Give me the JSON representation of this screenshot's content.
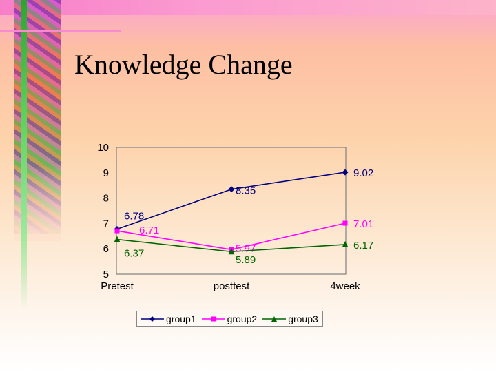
{
  "slide": {
    "title": "Knowledge Change"
  },
  "chart_data": {
    "type": "line",
    "categories": [
      "Pretest",
      "posttest",
      "4week"
    ],
    "ylim": [
      5,
      10
    ],
    "yticks": [
      5,
      6,
      7,
      8,
      9,
      10
    ],
    "grid": false,
    "legend_position": "bottom",
    "series": [
      {
        "name": "group1",
        "values": [
          6.78,
          8.35,
          9.02
        ],
        "labels": [
          "6.78",
          "8.35",
          "9.02"
        ],
        "color": "#000080",
        "marker": "diamond"
      },
      {
        "name": "group2",
        "values": [
          6.71,
          5.97,
          7.01
        ],
        "labels": [
          "6.71",
          "5.97",
          "7.01"
        ],
        "color": "#ff00ff",
        "marker": "square"
      },
      {
        "name": "group3",
        "values": [
          6.37,
          5.89,
          6.17
        ],
        "labels": [
          "6.37",
          "5.89",
          "6.17"
        ],
        "color": "#006400",
        "marker": "triangle"
      }
    ]
  }
}
